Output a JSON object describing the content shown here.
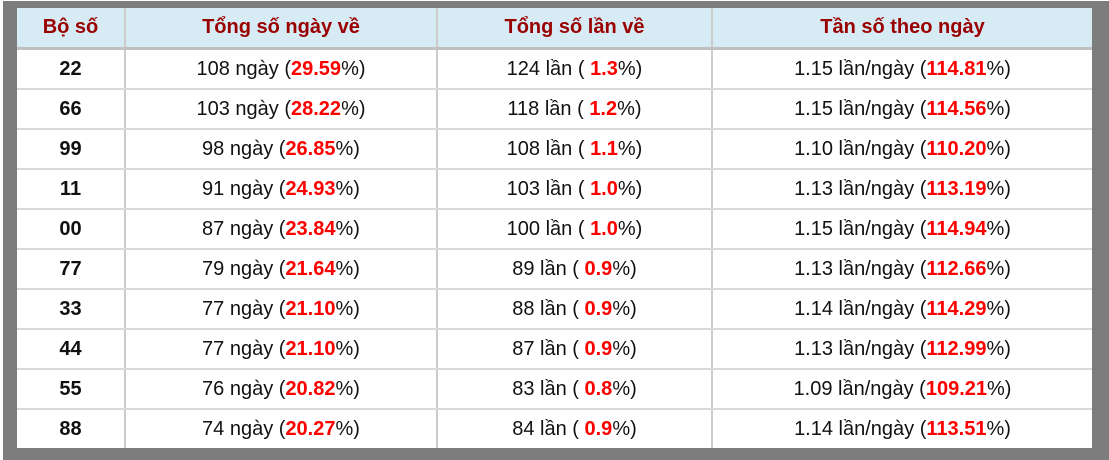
{
  "table": {
    "headers": [
      "Bộ số",
      "Tổng số ngày về",
      "Tổng số lần về",
      "Tần số theo ngày"
    ],
    "rows": [
      {
        "pair": "22",
        "days_pre": "108 ngày (",
        "days_val": "29.59",
        "days_post": "%)",
        "times_pre": "124 lần ( ",
        "times_val": "1.3",
        "times_post": "%)",
        "freq_pre": "1.15 lần/ngày (",
        "freq_val": "114.81",
        "freq_post": "%)"
      },
      {
        "pair": "66",
        "days_pre": "103 ngày (",
        "days_val": "28.22",
        "days_post": "%)",
        "times_pre": "118 lần ( ",
        "times_val": "1.2",
        "times_post": "%)",
        "freq_pre": "1.15 lần/ngày (",
        "freq_val": "114.56",
        "freq_post": "%)"
      },
      {
        "pair": "99",
        "days_pre": "98 ngày (",
        "days_val": "26.85",
        "days_post": "%)",
        "times_pre": "108 lần ( ",
        "times_val": "1.1",
        "times_post": "%)",
        "freq_pre": "1.10 lần/ngày (",
        "freq_val": "110.20",
        "freq_post": "%)"
      },
      {
        "pair": "11",
        "days_pre": "91 ngày (",
        "days_val": "24.93",
        "days_post": "%)",
        "times_pre": "103 lần ( ",
        "times_val": "1.0",
        "times_post": "%)",
        "freq_pre": "1.13 lần/ngày (",
        "freq_val": "113.19",
        "freq_post": "%)"
      },
      {
        "pair": "00",
        "days_pre": "87 ngày (",
        "days_val": "23.84",
        "days_post": "%)",
        "times_pre": "100 lần ( ",
        "times_val": "1.0",
        "times_post": "%)",
        "freq_pre": "1.15 lần/ngày (",
        "freq_val": "114.94",
        "freq_post": "%)"
      },
      {
        "pair": "77",
        "days_pre": "79 ngày (",
        "days_val": "21.64",
        "days_post": "%)",
        "times_pre": "89 lần ( ",
        "times_val": "0.9",
        "times_post": "%)",
        "freq_pre": "1.13 lần/ngày (",
        "freq_val": "112.66",
        "freq_post": "%)"
      },
      {
        "pair": "33",
        "days_pre": "77 ngày (",
        "days_val": "21.10",
        "days_post": "%)",
        "times_pre": "88 lần ( ",
        "times_val": "0.9",
        "times_post": "%)",
        "freq_pre": "1.14 lần/ngày (",
        "freq_val": "114.29",
        "freq_post": "%)"
      },
      {
        "pair": "44",
        "days_pre": "77 ngày (",
        "days_val": "21.10",
        "days_post": "%)",
        "times_pre": "87 lần ( ",
        "times_val": "0.9",
        "times_post": "%)",
        "freq_pre": "1.13 lần/ngày (",
        "freq_val": "112.99",
        "freq_post": "%)"
      },
      {
        "pair": "55",
        "days_pre": "76 ngày (",
        "days_val": "20.82",
        "days_post": "%)",
        "times_pre": "83 lần ( ",
        "times_val": "0.8",
        "times_post": "%)",
        "freq_pre": "1.09 lần/ngày (",
        "freq_val": "109.21",
        "freq_post": "%)"
      },
      {
        "pair": "88",
        "days_pre": "74 ngày (",
        "days_val": "20.27",
        "days_post": "%)",
        "times_pre": "84 lần ( ",
        "times_val": "0.9",
        "times_post": "%)",
        "freq_pre": "1.14 lần/ngày (",
        "freq_val": "113.51",
        "freq_post": "%)"
      }
    ]
  },
  "colors": {
    "frame_gray": "#7d7d7d",
    "header_bg": "#d7ebf5",
    "header_text": "#990000",
    "highlight_red": "#ff0000",
    "body_text": "#111111",
    "row_separator": "#d9d9d9",
    "column_separator": "#cccccc"
  },
  "chart_data": {
    "type": "table",
    "title": "",
    "columns": [
      "Bộ số",
      "Tổng số ngày về",
      "Tổng số lần về",
      "Tần số theo ngày"
    ],
    "rows": [
      [
        "22",
        "108 ngày (29.59%)",
        "124 lần ( 1.3%)",
        "1.15 lần/ngày (114.81%)"
      ],
      [
        "66",
        "103 ngày (28.22%)",
        "118 lần ( 1.2%)",
        "1.15 lần/ngày (114.56%)"
      ],
      [
        "99",
        "98 ngày (26.85%)",
        "108 lần ( 1.1%)",
        "1.10 lần/ngày (110.20%)"
      ],
      [
        "11",
        "91 ngày (24.93%)",
        "103 lần ( 1.0%)",
        "1.13 lần/ngày (113.19%)"
      ],
      [
        "00",
        "87 ngày (23.84%)",
        "100 lần ( 1.0%)",
        "1.15 lần/ngày (114.94%)"
      ],
      [
        "77",
        "79 ngày (21.64%)",
        "89 lần ( 0.9%)",
        "1.13 lần/ngày (112.66%)"
      ],
      [
        "33",
        "77 ngày (21.10%)",
        "88 lần ( 0.9%)",
        "1.14 lần/ngày (114.29%)"
      ],
      [
        "44",
        "77 ngày (21.10%)",
        "87 lần ( 0.9%)",
        "1.13 lần/ngày (112.99%)"
      ],
      [
        "55",
        "76 ngày (20.82%)",
        "83 lần ( 0.8%)",
        "1.09 lần/ngày (109.21%)"
      ],
      [
        "88",
        "74 ngày (20.27%)",
        "84 lần ( 0.9%)",
        "1.14 lần/ngày (113.51%)"
      ]
    ]
  }
}
